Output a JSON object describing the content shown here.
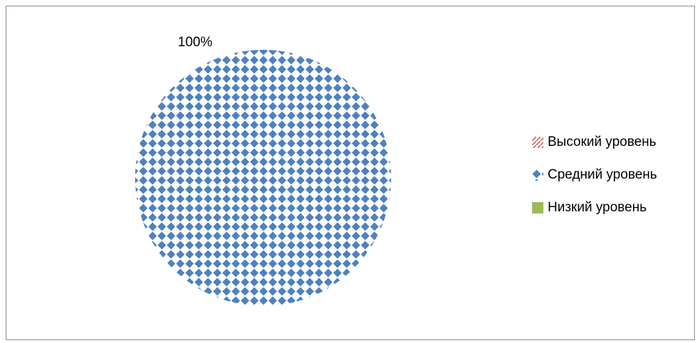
{
  "chart_data": {
    "type": "pie",
    "categories": [
      "Высокий уровень",
      "Средний уровень",
      "Низкий уровень"
    ],
    "values": [
      0,
      100,
      0
    ],
    "data_labels": [
      "",
      "100%",
      ""
    ],
    "colors": [
      "#c0504d",
      "#4f81bd",
      "#9bbb59"
    ],
    "legend_position": "right"
  }
}
